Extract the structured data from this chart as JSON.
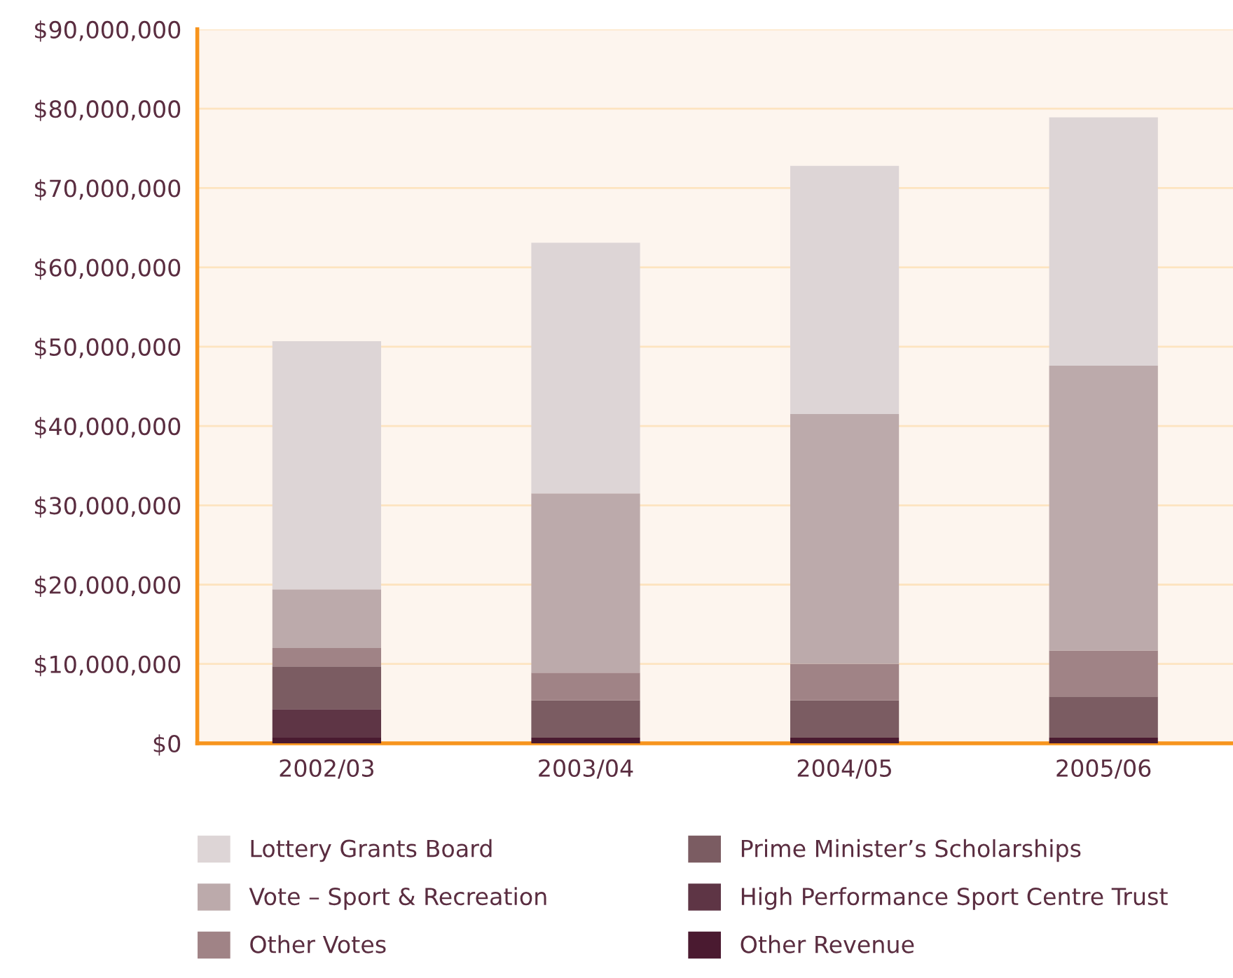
{
  "chart_data": {
    "type": "bar",
    "stacked": true,
    "categories": [
      "2002/03",
      "2003/04",
      "2004/05",
      "2005/06"
    ],
    "series": [
      {
        "name": "Other Revenue",
        "color": "#4a1a30",
        "values": [
          700000,
          700000,
          700000,
          700000
        ]
      },
      {
        "name": "High Performance Sport Centre Trust",
        "color": "#5e3545",
        "values": [
          3600000,
          0,
          0,
          0
        ]
      },
      {
        "name": "Prime Minister’s Scholarships",
        "color": "#7b5c62",
        "values": [
          5400000,
          4700000,
          4700000,
          5200000
        ]
      },
      {
        "name": "Other Votes",
        "color": "#a08386",
        "values": [
          2300000,
          3500000,
          4600000,
          5800000
        ]
      },
      {
        "name": "Vote – Sport & Recreation",
        "color": "#bcaaab",
        "values": [
          7400000,
          22600000,
          31500000,
          35900000
        ]
      },
      {
        "name": "Lottery Grants Board",
        "color": "#ddd5d6",
        "values": [
          31300000,
          31600000,
          31300000,
          31300000
        ]
      }
    ],
    "ylim": [
      0,
      90000000
    ],
    "yticks": [
      {
        "value": 0,
        "label": "$0"
      },
      {
        "value": 10000000,
        "label": "$10,000,000"
      },
      {
        "value": 20000000,
        "label": "$20,000,000"
      },
      {
        "value": 30000000,
        "label": "$30,000,000"
      },
      {
        "value": 40000000,
        "label": "$40,000,000"
      },
      {
        "value": 50000000,
        "label": "$50,000,000"
      },
      {
        "value": 60000000,
        "label": "$60,000,000"
      },
      {
        "value": 70000000,
        "label": "$70,000,000"
      },
      {
        "value": 80000000,
        "label": "$80,000,000"
      },
      {
        "value": 90000000,
        "label": "$90,000,000"
      }
    ],
    "grid": "y",
    "legend": "bottom"
  }
}
